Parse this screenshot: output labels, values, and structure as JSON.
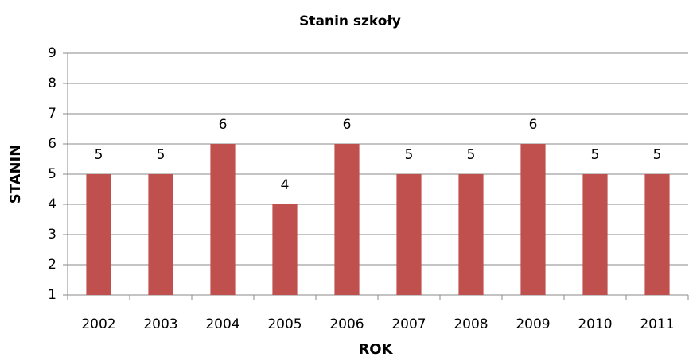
{
  "chart_data": {
    "type": "bar",
    "title": "Stanin szkoły",
    "x_label": "ROK",
    "y_label": "STANIN",
    "categories": [
      "2002",
      "2003",
      "2004",
      "2005",
      "2006",
      "2007",
      "2008",
      "2009",
      "2010",
      "2011"
    ],
    "values": [
      5,
      5,
      6,
      4,
      6,
      5,
      5,
      6,
      5,
      5
    ],
    "color": "#c0504d",
    "ylim": [
      1,
      9
    ],
    "yticks": [
      1,
      2,
      3,
      4,
      5,
      6,
      7,
      8,
      9
    ],
    "grid": true
  }
}
